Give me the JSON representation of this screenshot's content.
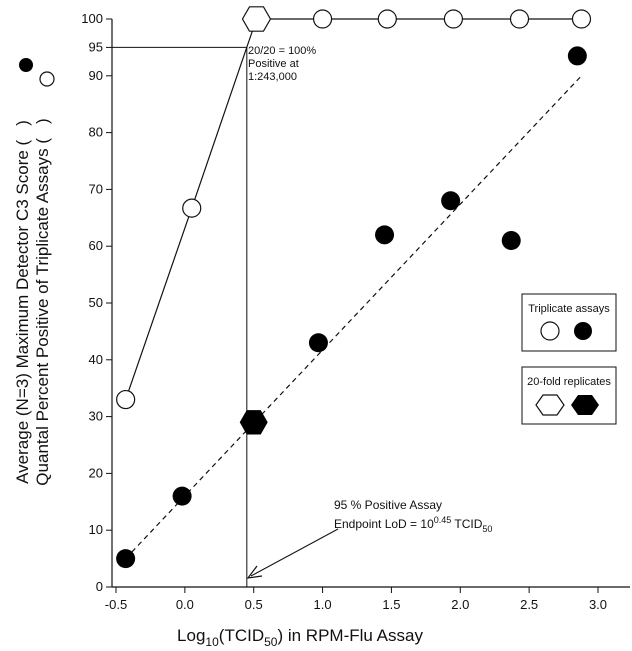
{
  "chart_data": {
    "type": "scatter",
    "xlabel": {
      "main": "Log",
      "sub": "10",
      "mid": "(TCID",
      "sub2": "50",
      "end": ") in RPM-Flu Assay"
    },
    "ylabel": {
      "line1": "Average (N=3) Maximum Detector C3 Score (",
      "line1_end": ")",
      "line2": "Quantal Percent Positive of Triplicate Assays (",
      "line2_end": ")"
    },
    "xlim": [
      -0.5,
      3.0
    ],
    "ylim": [
      0,
      100
    ],
    "x_ticks": [
      "-0.5",
      "0.0",
      "0.5",
      "1.0",
      "1.5",
      "2.0",
      "2.5",
      "3.0"
    ],
    "x_tick_values": [
      -0.5,
      0.0,
      0.5,
      1.0,
      1.5,
      2.0,
      2.5,
      3.0
    ],
    "y_ticks": [
      "0",
      "10",
      "20",
      "30",
      "40",
      "50",
      "60",
      "70",
      "80",
      "90",
      "95",
      "100"
    ],
    "y_tick_values": [
      0,
      10,
      20,
      30,
      40,
      50,
      60,
      70,
      80,
      90,
      95,
      100
    ],
    "series": [
      {
        "name": "Triplicate assays (open)",
        "marker": "open-circle",
        "connected": true,
        "x": [
          -0.43,
          0.05,
          0.52,
          1.0,
          1.47,
          1.95,
          2.43,
          2.88
        ],
        "y": [
          33,
          66.7,
          100,
          100,
          100,
          100,
          100,
          100
        ]
      },
      {
        "name": "Triplicate assays (filled)",
        "marker": "filled-circle",
        "connected": false,
        "x": [
          -0.43,
          -0.02,
          0.97,
          1.45,
          1.93,
          2.37,
          2.85
        ],
        "y": [
          5,
          16,
          43,
          62,
          68,
          61,
          93.5
        ]
      },
      {
        "name": "20-fold replicates (open)",
        "marker": "open-hexagon",
        "x": [
          0.52
        ],
        "y": [
          100
        ]
      },
      {
        "name": "20-fold replicates (filled)",
        "marker": "filled-hexagon",
        "x": [
          0.5
        ],
        "y": [
          29
        ]
      }
    ],
    "fit_line": {
      "x": [
        -0.43,
        2.88
      ],
      "y": [
        5,
        90
      ]
    },
    "reference_lines": {
      "y": 95,
      "x": 0.45
    },
    "annotations": {
      "top": [
        "20/20 = 100%",
        "Positive at",
        "1:243,000"
      ],
      "lod_line1": "95 % Positive Assay",
      "lod_prefix": "Endpoint LoD = 10",
      "lod_sup": "0.45",
      "lod_unit": "TCID",
      "lod_sub": "50"
    },
    "legend": {
      "position": "right",
      "box1_title": "Triplicate assays",
      "box2_title": "20-fold replicates"
    }
  }
}
